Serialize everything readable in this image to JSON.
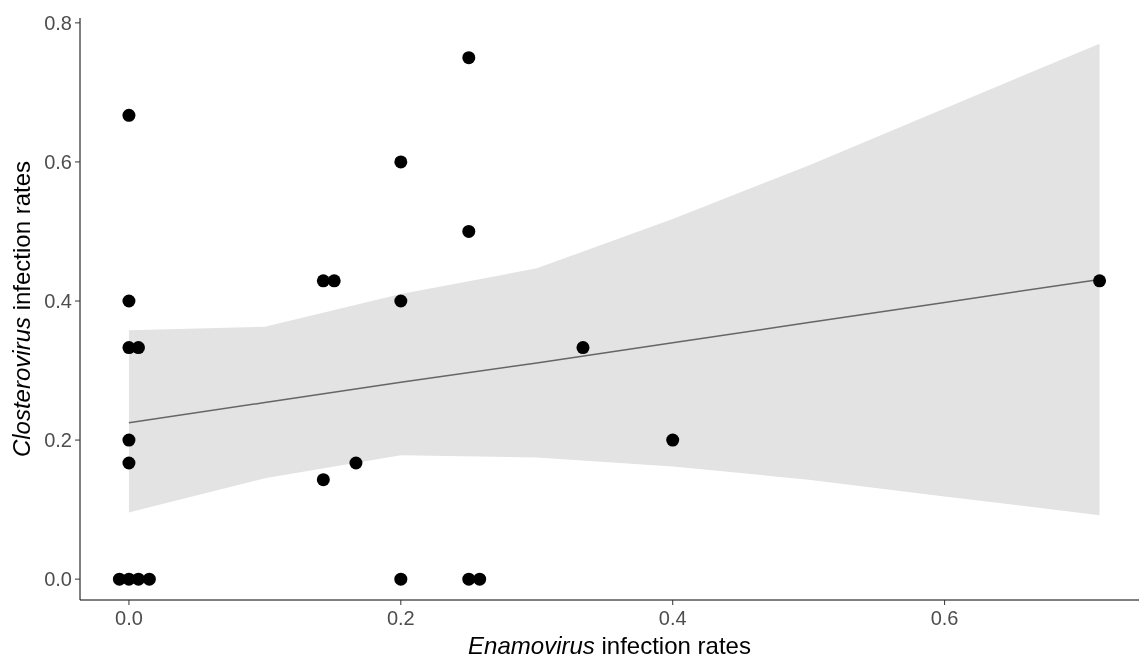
{
  "chart_data": {
    "type": "scatter",
    "xlabel": "Enamovirus infection rates",
    "ylabel": "Closterovirus infection rates",
    "xlim": [
      -0.036,
      0.743
    ],
    "ylim": [
      -0.03,
      0.807
    ],
    "xticks": [
      {
        "value": 0,
        "label": "0.0"
      },
      {
        "value": 0.2,
        "label": "0.2"
      },
      {
        "value": 0.4,
        "label": "0.4"
      },
      {
        "value": 0.6,
        "label": "0.6"
      }
    ],
    "yticks": [
      {
        "value": 0,
        "label": "0.0"
      },
      {
        "value": 0.2,
        "label": "0.2"
      },
      {
        "value": 0.4,
        "label": "0.4"
      },
      {
        "value": 0.6,
        "label": "0.6"
      },
      {
        "value": 0.8,
        "label": "0.8"
      }
    ],
    "grid": false,
    "marker": "circle",
    "series": [
      {
        "type": "line",
        "color": "#666666",
        "line_style": "solid",
        "marker": "none",
        "x": [
          0,
          0.1,
          0.2,
          0.3,
          0.4,
          0.5,
          0.6,
          0.714
        ],
        "values": [
          0.225,
          0.254,
          0.283,
          0.311,
          0.34,
          0.369,
          0.398,
          0.431
        ],
        "lower": [
          0.096,
          0.145,
          0.178,
          0.175,
          0.162,
          0.143,
          0.119,
          0.092
        ],
        "upper": [
          0.358,
          0.363,
          0.41,
          0.447,
          0.518,
          0.595,
          0.677,
          0.77
        ]
      },
      {
        "color": "#000000",
        "x": [
          0,
          0,
          0,
          0.007,
          0,
          0,
          -0.007,
          0,
          0.007,
          0.015,
          0.143,
          0.143,
          0.151,
          0.167,
          0.2,
          0.2,
          0.2,
          0.25,
          0.25,
          0.25,
          0.258,
          0.334,
          0.4,
          0.714
        ],
        "values": [
          0.667,
          0.4,
          0.333,
          0.333,
          0.2,
          0.167,
          0,
          0,
          0,
          0,
          0.143,
          0.429,
          0.429,
          0.167,
          0.6,
          0.4,
          0,
          0.75,
          0.5,
          0,
          0,
          0.333,
          0.2,
          0.429
        ]
      }
    ]
  }
}
